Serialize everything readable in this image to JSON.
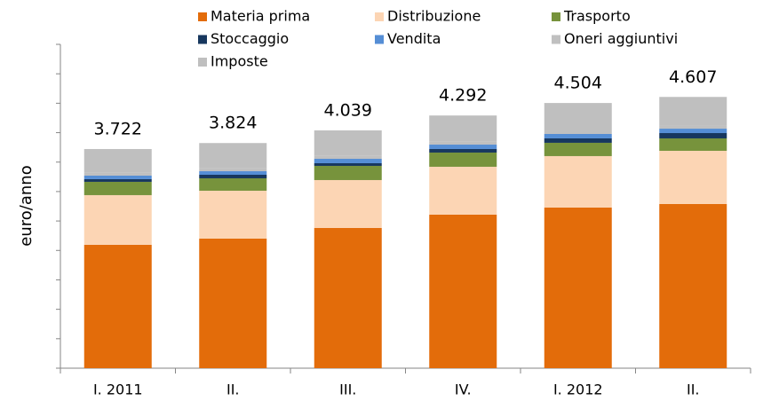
{
  "chart_data": {
    "type": "stacked_bar",
    "y_label": "euro/anno",
    "categories": [
      "I. 2011",
      "II.",
      "III.",
      "IV.",
      "I. 2012",
      "II."
    ],
    "series": [
      {
        "name": "Materia prima",
        "color": "#e36c0a",
        "values": [
          2095,
          2200,
          2381,
          2607,
          2728,
          2788
        ]
      },
      {
        "name": "Distribuzione",
        "color": "#fcd5b4",
        "values": [
          844,
          814,
          814,
          814,
          874,
          904
        ]
      },
      {
        "name": "Trasporto",
        "color": "#77933c",
        "values": [
          226,
          211,
          241,
          241,
          226,
          211
        ]
      },
      {
        "name": "Stoccaggio",
        "color": "#17375e",
        "values": [
          45,
          60,
          45,
          60,
          75,
          90
        ]
      },
      {
        "name": "Vendita",
        "color": "#558ed5",
        "values": [
          60,
          60,
          75,
          75,
          75,
          75
        ]
      },
      {
        "name": "Oneri aggiuntivi",
        "color": "#c0c0c0",
        "values": [
          50,
          50,
          50,
          50,
          60,
          60
        ]
      },
      {
        "name": "Imposte",
        "color": "#bfbfbf",
        "values": [
          402,
          429,
          433,
          445,
          466,
          479
        ]
      }
    ],
    "totals": {
      "values": [
        3722,
        3824,
        4039,
        4292,
        4504,
        4607
      ],
      "value_labels": [
        "3.722",
        "3.824",
        "4.039",
        "4.292",
        "4.504",
        "4.607"
      ]
    },
    "ylim": [
      0,
      5500
    ],
    "yticks": [
      0,
      500,
      1000,
      1500,
      2000,
      2500,
      3000,
      3500,
      4000,
      4500,
      5000,
      5500
    ]
  }
}
